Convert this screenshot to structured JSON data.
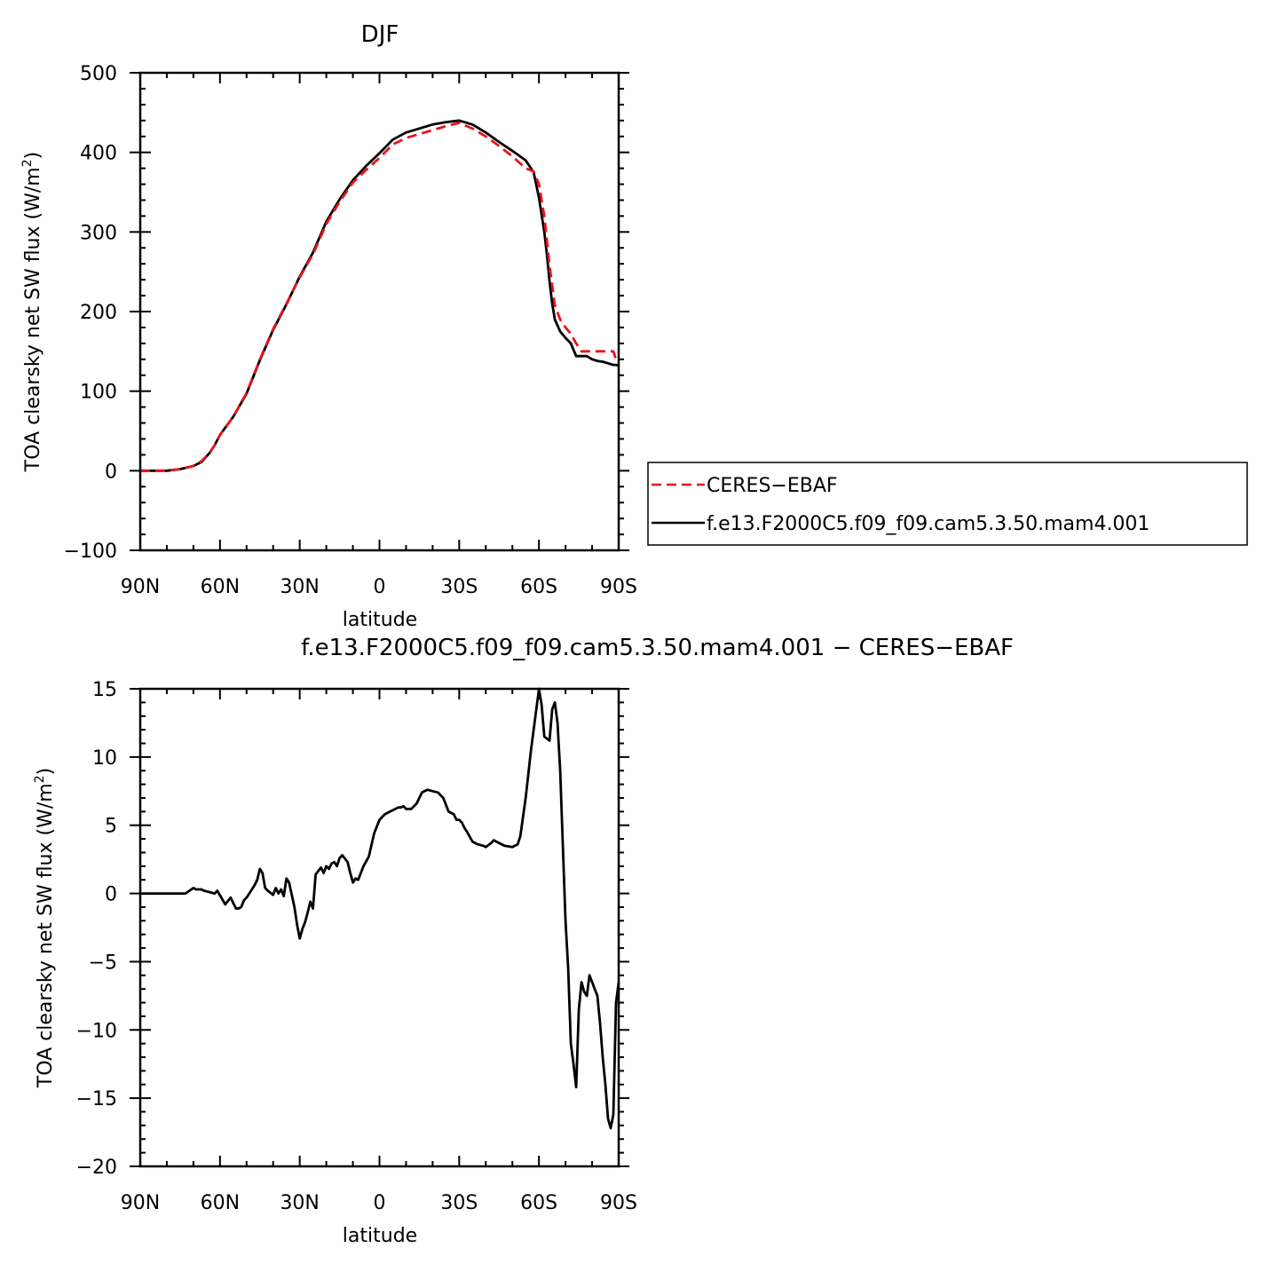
{
  "chart_data": [
    {
      "type": "line",
      "title": "DJF",
      "xlabel": "latitude",
      "ylabel": "TOA clearsky net SW flux (W/m",
      "ylabel_sup": "2",
      "ylabel_close": ")",
      "xlim": [
        90,
        -90
      ],
      "ylim": [
        -100,
        500
      ],
      "xticks": [
        90,
        60,
        30,
        0,
        -30,
        -60,
        -90
      ],
      "xtick_labels": [
        "90N",
        "60N",
        "30N",
        "0",
        "30S",
        "60S",
        "90S"
      ],
      "yticks": [
        -100,
        0,
        100,
        200,
        300,
        400,
        500
      ],
      "ytick_labels": [
        "−100",
        "0",
        "100",
        "200",
        "300",
        "400",
        "500"
      ],
      "legend_position": "right",
      "series": [
        {
          "name": "CERES−EBAF",
          "color": "#e8141c",
          "dash": "dashed",
          "x": [
            90,
            85,
            80,
            75,
            70,
            67,
            64,
            62,
            60,
            55,
            50,
            45,
            40,
            35,
            30,
            25,
            20,
            15,
            10,
            5,
            0,
            -5,
            -10,
            -15,
            -20,
            -25,
            -30,
            -35,
            -40,
            -45,
            -50,
            -55,
            -58,
            -60,
            -62,
            -63,
            -64,
            -65,
            -66,
            -68,
            -70,
            -72,
            -74,
            -76,
            -78,
            -80,
            -82,
            -84,
            -86,
            -88,
            -89,
            -90
          ],
          "y": [
            0,
            0,
            0,
            2,
            6,
            12,
            22,
            32,
            45,
            68,
            98,
            140,
            178,
            210,
            243,
            272,
            310,
            338,
            362,
            378,
            393,
            410,
            418,
            423,
            428,
            433,
            437,
            430,
            420,
            408,
            395,
            380,
            376,
            360,
            320,
            290,
            258,
            233,
            208,
            190,
            180,
            172,
            160,
            150,
            150,
            150,
            150,
            150,
            150,
            150,
            140,
            138
          ]
        },
        {
          "name": "f.e13.F2000C5.f09_f09.cam5.3.50.mam4.001",
          "color": "#000000",
          "dash": "solid",
          "x": [
            90,
            85,
            80,
            75,
            70,
            67,
            64,
            62,
            60,
            55,
            50,
            45,
            40,
            35,
            30,
            25,
            20,
            15,
            10,
            5,
            0,
            -5,
            -10,
            -15,
            -20,
            -25,
            -30,
            -35,
            -40,
            -45,
            -50,
            -55,
            -58,
            -60,
            -62,
            -63,
            -64,
            -65,
            -66,
            -68,
            -70,
            -72,
            -74,
            -76,
            -78,
            -80,
            -82,
            -84,
            -86,
            -88,
            -89,
            -90
          ],
          "y": [
            0,
            0,
            0,
            2,
            6,
            11,
            22,
            32,
            45,
            68,
            97,
            139,
            177,
            209,
            244,
            274,
            313,
            341,
            365,
            383,
            399,
            416,
            425,
            430,
            435,
            438,
            440,
            435,
            425,
            413,
            402,
            390,
            375,
            343,
            300,
            272,
            238,
            210,
            190,
            175,
            167,
            160,
            144,
            144,
            144,
            140,
            138,
            137,
            135,
            133,
            133,
            132
          ]
        }
      ]
    },
    {
      "type": "line",
      "title": "f.e13.F2000C5.f09_f09.cam5.3.50.mam4.001  −  CERES−EBAF",
      "xlabel": "latitude",
      "ylabel": "TOA clearsky net SW flux (W/m",
      "ylabel_sup": "2",
      "ylabel_close": ")",
      "xlim": [
        90,
        -90
      ],
      "ylim": [
        -20,
        15
      ],
      "xticks": [
        90,
        60,
        30,
        0,
        -30,
        -60,
        -90
      ],
      "xtick_labels": [
        "90N",
        "60N",
        "30N",
        "0",
        "30S",
        "60S",
        "90S"
      ],
      "yticks": [
        -20,
        -15,
        -10,
        -5,
        0,
        5,
        10,
        15
      ],
      "ytick_labels": [
        "−20",
        "−15",
        "−10",
        "−5",
        "0",
        "5",
        "10",
        "15"
      ],
      "series": [
        {
          "name": "",
          "color": "#000000",
          "dash": "solid",
          "x": [
            90,
            83,
            80,
            78,
            73,
            70,
            69,
            67,
            66,
            64,
            62,
            61,
            58,
            56,
            54,
            53,
            52,
            51,
            50,
            49,
            48,
            47,
            46,
            45,
            44,
            43,
            42,
            40,
            39,
            38,
            37,
            36,
            35,
            34,
            32,
            31,
            30,
            29,
            28,
            27,
            26,
            25,
            24,
            22,
            21,
            20,
            19,
            18,
            17,
            16,
            15,
            14,
            12,
            11,
            10,
            9,
            8,
            6,
            4,
            2,
            0,
            -2,
            -4,
            -6,
            -7,
            -8,
            -9,
            -10,
            -12,
            -14,
            -16,
            -18,
            -20,
            -22,
            -24,
            -25,
            -26,
            -28,
            -29,
            -30,
            -31,
            -32,
            -33,
            -35,
            -37,
            -39,
            -40,
            -42,
            -43,
            -45,
            -47,
            -50,
            -52,
            -53,
            -55,
            -57,
            -59,
            -60,
            -61,
            -62,
            -64,
            -65,
            -66,
            -67,
            -68,
            -69,
            -70,
            -71,
            -72,
            -73,
            -74,
            -75,
            -76,
            -77,
            -78,
            -79,
            -80,
            -81,
            -82,
            -83,
            -84,
            -85,
            -86,
            -87,
            -88,
            -89,
            -90
          ],
          "y": [
            0,
            0,
            0,
            0,
            0,
            0.4,
            0.3,
            0.3,
            0.2,
            0.1,
            0.0,
            0.2,
            -0.8,
            -0.3,
            -1.1,
            -1.1,
            -1.0,
            -0.5,
            -0.3,
            0.0,
            0.3,
            0.6,
            1.0,
            1.8,
            1.5,
            0.4,
            0.2,
            -0.1,
            0.4,
            0.0,
            0.3,
            -0.2,
            1.1,
            0.8,
            -1.0,
            -2.3,
            -3.3,
            -2.6,
            -2.1,
            -1.4,
            -0.6,
            -1.1,
            1.4,
            1.9,
            1.5,
            2.0,
            1.8,
            2.2,
            2.3,
            2.0,
            2.6,
            2.8,
            2.3,
            1.5,
            0.8,
            1.1,
            1.0,
            2.0,
            2.7,
            4.4,
            5.4,
            5.8,
            6.0,
            6.2,
            6.3,
            6.3,
            6.4,
            6.2,
            6.2,
            6.6,
            7.4,
            7.6,
            7.5,
            7.4,
            7.0,
            6.5,
            6.0,
            5.8,
            5.4,
            5.4,
            5.2,
            4.8,
            4.5,
            3.8,
            3.6,
            3.5,
            3.4,
            3.7,
            3.9,
            3.7,
            3.5,
            3.4,
            3.6,
            4.2,
            7.0,
            10.5,
            13.5,
            15.0,
            13.8,
            11.5,
            11.2,
            13.5,
            14.0,
            12.5,
            9.0,
            3.5,
            -2.0,
            -5.5,
            -11.0,
            -12.5,
            -14.2,
            -8.5,
            -6.5,
            -7.2,
            -7.5,
            -6.0,
            -6.5,
            -7.0,
            -7.5,
            -9.5,
            -12.0,
            -14.0,
            -16.5,
            -17.2,
            -16.2,
            -8.0,
            -6.5
          ]
        }
      ]
    }
  ]
}
